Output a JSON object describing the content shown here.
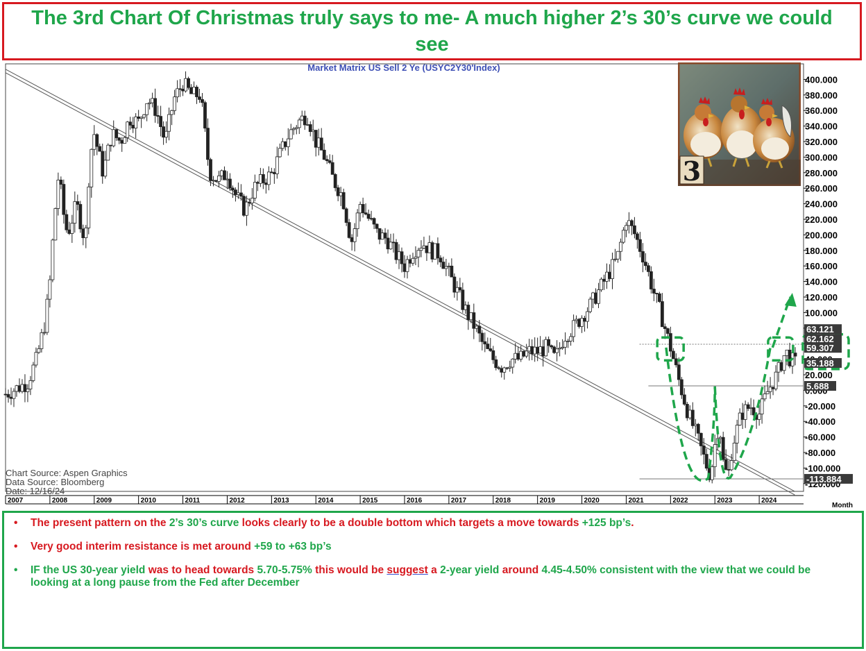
{
  "page": {
    "title": "The 3rd Chart Of Christmas truly says to me- A much higher 2’s 30’s curve we could see"
  },
  "chart_data": {
    "type": "candlestick",
    "title": "Market Matrix US Sell 2 Ye (USYC2Y30'Index)",
    "xlabel": "Month",
    "ylim": [
      -130,
      420
    ],
    "xlim": [
      2007.0,
      2025.0
    ],
    "x_ticks": [
      "2007",
      "2008",
      "2009",
      "2010",
      "2011",
      "2012",
      "2013",
      "2014",
      "2015",
      "2016",
      "2017",
      "2018",
      "2019",
      "2020",
      "2021",
      "2022",
      "2023",
      "2024"
    ],
    "y_ticks": [
      "400.000",
      "380.000",
      "360.000",
      "340.000",
      "320.000",
      "300.000",
      "280.000",
      "260.000",
      "240.000",
      "220.000",
      "200.000",
      "180.000",
      "160.000",
      "140.000",
      "120.000",
      "100.000",
      "80.000",
      "60.000",
      "40.000",
      "20.000",
      "0.000",
      "-20.000",
      "-40.000",
      "-60.000",
      "-80.000",
      "-100.000",
      "-120.000"
    ],
    "y_tick_values": [
      400,
      380,
      360,
      340,
      320,
      300,
      280,
      260,
      240,
      220,
      200,
      180,
      160,
      140,
      120,
      100,
      80,
      60,
      40,
      20,
      0,
      -20,
      -40,
      -60,
      -80,
      -100,
      -120
    ],
    "price_labels": [
      {
        "text": "63.121",
        "value": 63.121
      },
      {
        "text": "62.162",
        "value": 62.162
      },
      {
        "text": "59.307",
        "value": 59.307
      },
      {
        "text": "35.188",
        "value": 35.188
      },
      {
        "text": "5.688",
        "value": 5.688
      },
      {
        "text": "-113.884",
        "value": -113.884
      }
    ],
    "horizontal_levels": [
      59.3,
      5.7,
      -113.9
    ],
    "trendline": {
      "from": [
        2007.0,
        413
      ],
      "to": [
        2024.8,
        -130
      ]
    },
    "target_arrow": {
      "from": [
        2024.3,
        55
      ],
      "to": [
        2024.7,
        120
      ]
    },
    "series": [
      {
        "values": [
          [
            2007.0,
            -5
          ],
          [
            2007.5,
            10
          ],
          [
            2007.7,
            40
          ],
          [
            2007.9,
            90
          ],
          [
            2008.0,
            140
          ],
          [
            2008.1,
            220
          ],
          [
            2008.2,
            280
          ],
          [
            2008.3,
            230
          ],
          [
            2008.4,
            200
          ],
          [
            2008.6,
            240
          ],
          [
            2008.8,
            190
          ],
          [
            2008.9,
            300
          ],
          [
            2009.0,
            330
          ],
          [
            2009.2,
            280
          ],
          [
            2009.4,
            330
          ],
          [
            2009.6,
            320
          ],
          [
            2009.8,
            350
          ],
          [
            2010.0,
            345
          ],
          [
            2010.2,
            375
          ],
          [
            2010.4,
            360
          ],
          [
            2010.6,
            320
          ],
          [
            2010.8,
            375
          ],
          [
            2011.0,
            395
          ],
          [
            2011.2,
            380
          ],
          [
            2011.4,
            380
          ],
          [
            2011.6,
            280
          ],
          [
            2011.8,
            270
          ],
          [
            2012.0,
            280
          ],
          [
            2012.2,
            250
          ],
          [
            2012.4,
            232
          ],
          [
            2012.6,
            260
          ],
          [
            2012.8,
            270
          ],
          [
            2013.0,
            278
          ],
          [
            2013.2,
            305
          ],
          [
            2013.4,
            330
          ],
          [
            2013.6,
            345
          ],
          [
            2013.8,
            355
          ],
          [
            2014.0,
            320
          ],
          [
            2014.2,
            300
          ],
          [
            2014.4,
            270
          ],
          [
            2014.6,
            250
          ],
          [
            2014.8,
            190
          ],
          [
            2015.0,
            240
          ],
          [
            2015.2,
            220
          ],
          [
            2015.4,
            200
          ],
          [
            2015.6,
            195
          ],
          [
            2015.8,
            175
          ],
          [
            2016.0,
            160
          ],
          [
            2016.2,
            180
          ],
          [
            2016.4,
            190
          ],
          [
            2016.6,
            180
          ],
          [
            2016.8,
            175
          ],
          [
            2017.0,
            150
          ],
          [
            2017.2,
            125
          ],
          [
            2017.4,
            100
          ],
          [
            2017.6,
            80
          ],
          [
            2017.8,
            55
          ],
          [
            2018.0,
            40
          ],
          [
            2018.2,
            30
          ],
          [
            2018.4,
            40
          ],
          [
            2018.6,
            40
          ],
          [
            2018.8,
            50
          ],
          [
            2019.0,
            50
          ],
          [
            2019.2,
            55
          ],
          [
            2019.4,
            40
          ],
          [
            2019.6,
            70
          ],
          [
            2019.8,
            80
          ],
          [
            2020.0,
            95
          ],
          [
            2020.2,
            110
          ],
          [
            2020.4,
            130
          ],
          [
            2020.6,
            150
          ],
          [
            2020.8,
            170
          ],
          [
            2021.0,
            220
          ],
          [
            2021.2,
            200
          ],
          [
            2021.4,
            170
          ],
          [
            2021.6,
            130
          ],
          [
            2021.8,
            95
          ],
          [
            2022.0,
            55
          ],
          [
            2022.2,
            10
          ],
          [
            2022.4,
            -30
          ],
          [
            2022.6,
            -60
          ],
          [
            2022.8,
            -95
          ],
          [
            2022.9,
            -110
          ],
          [
            2023.0,
            -70
          ],
          [
            2023.1,
            -40
          ],
          [
            2023.2,
            -100
          ],
          [
            2023.3,
            -110
          ],
          [
            2023.4,
            -70
          ],
          [
            2023.6,
            -30
          ],
          [
            2023.8,
            -20
          ],
          [
            2024.0,
            -30
          ],
          [
            2024.2,
            0
          ],
          [
            2024.4,
            20
          ],
          [
            2024.6,
            50
          ],
          [
            2024.7,
            40
          ],
          [
            2024.8,
            35
          ]
        ]
      }
    ],
    "annotations": {
      "source_lines": [
        "Chart Source: Aspen Graphics",
        "Data Source: Bloomberg",
        "Date: 12/16/24"
      ]
    }
  },
  "notes": {
    "b1": {
      "dot": "•",
      "p1": "The present pattern on the ",
      "g1": "2’s 30’s curve",
      "p2": " looks clearly to be a double bottom which targets a move towards ",
      "g2": "+125 bp’s",
      "p3": "."
    },
    "b2": {
      "dot": "•",
      "p1": "Very good interim resistance is met around ",
      "g1": "+59 to +63 bp’s"
    },
    "b3": {
      "dot": "•",
      "g1": "IF the US 30-year yield ",
      "r1": "was to head towards ",
      "g2": "5.70-5.75%",
      "r2": " this would be ",
      "r3": "suggest",
      "r4": " a ",
      "g3": "2-year yield",
      "r5": " around ",
      "g4": "4.45-4.50%",
      "g5": " consistent with the view that we could be looking at a long pause from the Fed after December"
    }
  },
  "colors": {
    "title_border": "#d71920",
    "title_text": "#1fa64b",
    "notes_border": "#1fa64b",
    "red_text": "#d71920",
    "green_text": "#1fa64b",
    "dashed_pattern": "#1fa64b",
    "chart_title": "#3d4fb5",
    "candles": "#222222",
    "trendline": "#555555"
  }
}
